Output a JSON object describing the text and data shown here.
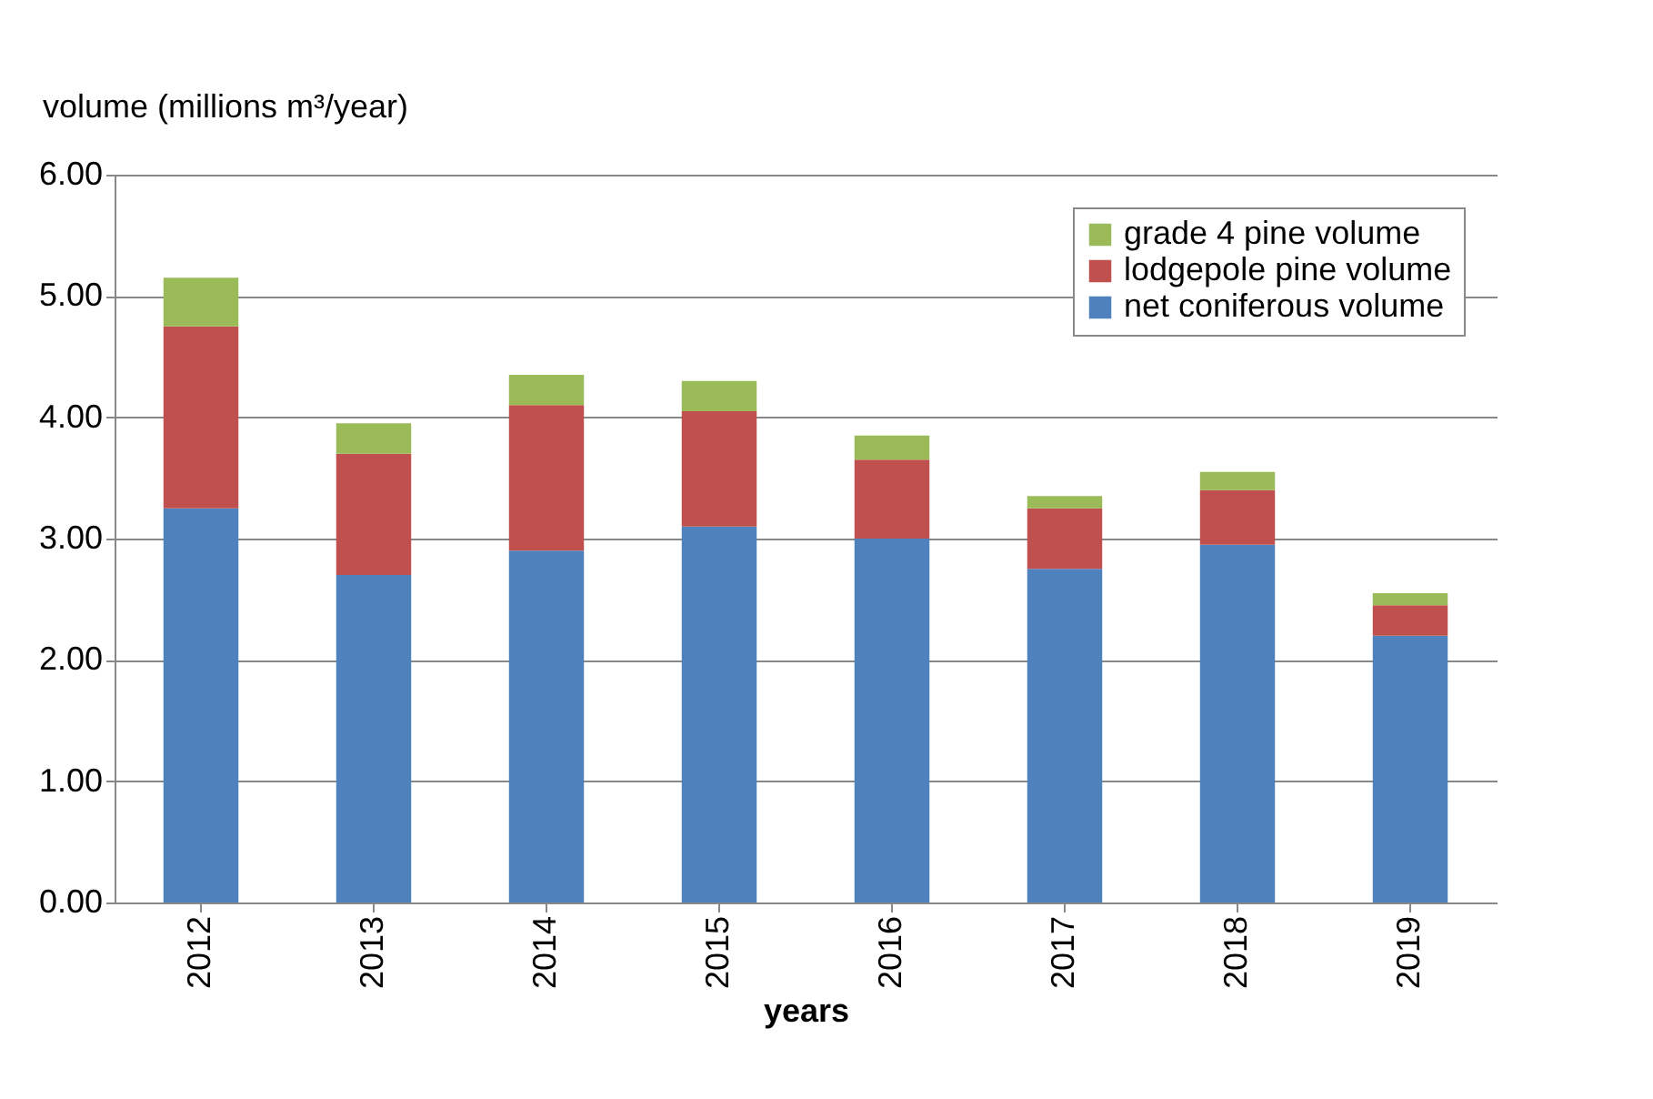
{
  "chart_data": {
    "type": "bar",
    "stacked": true,
    "xlabel": "years",
    "ylabel": "volume (millions m³/year)",
    "categories": [
      "2012",
      "2013",
      "2014",
      "2015",
      "2016",
      "2017",
      "2018",
      "2019"
    ],
    "series": [
      {
        "name": "net coniferous volume",
        "color": "#4f81bd",
        "values": [
          3.25,
          2.7,
          2.9,
          3.1,
          3.0,
          2.75,
          2.95,
          2.2
        ]
      },
      {
        "name": "lodgepole pine volume",
        "color": "#c0504d",
        "values": [
          1.5,
          1.0,
          1.2,
          0.95,
          0.65,
          0.5,
          0.45,
          0.25
        ]
      },
      {
        "name": "grade 4 pine volume",
        "color": "#9bbb59",
        "values": [
          0.4,
          0.25,
          0.25,
          0.25,
          0.2,
          0.1,
          0.15,
          0.1
        ]
      }
    ],
    "ylim": [
      0,
      6
    ],
    "yticks": [
      {
        "value": 0,
        "label": "0.00"
      },
      {
        "value": 1,
        "label": "1.00"
      },
      {
        "value": 2,
        "label": "2.00"
      },
      {
        "value": 3,
        "label": "3.00"
      },
      {
        "value": 4,
        "label": "4.00"
      },
      {
        "value": 5,
        "label": "5.00"
      },
      {
        "value": 6,
        "label": "6.00"
      }
    ],
    "grid": "y",
    "legend": "top right"
  }
}
